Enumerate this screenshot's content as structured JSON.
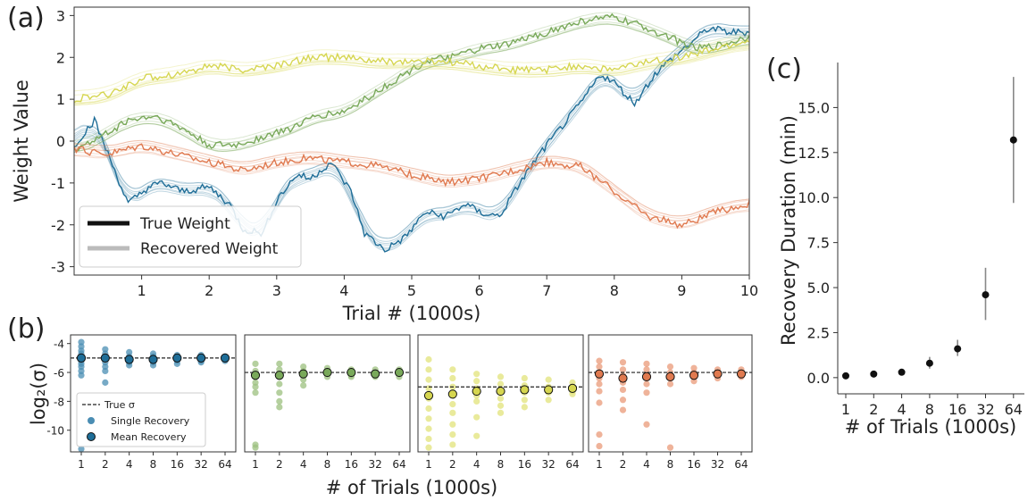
{
  "chart_data": [
    {
      "panel": "(a)",
      "type": "line",
      "xlabel": "Trial # (1000s)",
      "ylabel": "Weight Value",
      "xlim": [
        0,
        10
      ],
      "ylim": [
        -3.2,
        3.2
      ],
      "xticks": [
        "1",
        "2",
        "3",
        "4",
        "5",
        "6",
        "7",
        "8",
        "9",
        "10"
      ],
      "yticks": [
        "-3",
        "-2",
        "-1",
        "0",
        "1",
        "2",
        "3"
      ],
      "legend": {
        "placement": "lower-left",
        "entries": [
          {
            "label": "True Weight",
            "color": "#111111"
          },
          {
            "label": "Recovered Weight",
            "color": "#bbbbbb"
          }
        ]
      },
      "colors": {
        "blue": "#1f6e98",
        "green": "#79a95a",
        "yellow": "#d6d650",
        "orange": "#e07a50"
      },
      "series": [
        {
          "color": "blue",
          "x": [
            0,
            0.3,
            0.5,
            0.8,
            1.1,
            1.3,
            1.6,
            2.0,
            2.3,
            2.5,
            2.8,
            3.0,
            3.3,
            3.5,
            3.8,
            4.1,
            4.3,
            4.6,
            4.9,
            5.2,
            5.5,
            5.8,
            6.0,
            6.3,
            6.6,
            6.9,
            7.2,
            7.5,
            7.8,
            8.0,
            8.3,
            8.6,
            8.8,
            9.1,
            9.4,
            9.7,
            10
          ],
          "values": [
            -0.1,
            0.5,
            -0.3,
            -1.5,
            -1.1,
            -1.0,
            -1.2,
            -1.1,
            -1.5,
            -2.1,
            -2.2,
            -1.4,
            -0.8,
            -0.9,
            -0.5,
            -1.2,
            -2.2,
            -2.6,
            -2.3,
            -1.7,
            -1.8,
            -1.5,
            -1.7,
            -1.8,
            -1.0,
            -0.3,
            0.3,
            0.9,
            1.6,
            1.4,
            0.9,
            1.6,
            1.9,
            2.3,
            2.7,
            2.6,
            2.6
          ]
        },
        {
          "color": "green",
          "x": [
            0,
            0.4,
            0.8,
            1.2,
            1.6,
            2.0,
            2.4,
            2.8,
            3.2,
            3.6,
            4.0,
            4.4,
            4.8,
            5.2,
            5.6,
            6.0,
            6.4,
            6.8,
            7.2,
            7.6,
            8.0,
            8.4,
            8.8,
            9.2,
            9.6,
            10
          ],
          "values": [
            -0.2,
            0.1,
            0.5,
            0.6,
            0.3,
            -0.1,
            -0.1,
            0.1,
            0.3,
            0.6,
            0.7,
            1.1,
            1.5,
            1.9,
            2.0,
            2.2,
            2.3,
            2.5,
            2.7,
            2.9,
            2.95,
            2.75,
            2.5,
            2.2,
            2.3,
            2.5
          ]
        },
        {
          "color": "yellow",
          "x": [
            0,
            0.5,
            1.0,
            1.5,
            2.0,
            2.5,
            3.0,
            3.5,
            4.0,
            4.5,
            5.0,
            5.5,
            6.0,
            6.5,
            7.0,
            7.5,
            8.0,
            8.5,
            9.0,
            9.5,
            10
          ],
          "values": [
            1.0,
            1.1,
            1.5,
            1.6,
            1.8,
            1.7,
            1.8,
            2.0,
            2.0,
            1.9,
            1.9,
            1.9,
            1.8,
            1.7,
            1.7,
            1.8,
            1.7,
            1.9,
            2.0,
            2.2,
            2.4
          ]
        },
        {
          "color": "orange",
          "x": [
            0,
            0.5,
            1.0,
            1.5,
            2.0,
            2.5,
            3.0,
            3.5,
            4.0,
            4.5,
            5.0,
            5.5,
            6.0,
            6.5,
            7.0,
            7.5,
            8.0,
            8.5,
            9.0,
            9.5,
            10
          ],
          "values": [
            -0.2,
            -0.3,
            -0.1,
            -0.3,
            -0.5,
            -0.7,
            -0.5,
            -0.4,
            -0.5,
            -0.6,
            -0.8,
            -1.0,
            -0.9,
            -0.7,
            -0.5,
            -0.6,
            -1.2,
            -1.8,
            -2.0,
            -1.7,
            -1.5
          ]
        }
      ]
    },
    {
      "panel": "(b)",
      "type": "scatter",
      "xlabel": "# of Trials (1000s)",
      "ylabel": "log₂(σ)",
      "categories": [
        "1",
        "2",
        "4",
        "8",
        "16",
        "32",
        "64"
      ],
      "ylim": [
        -11.5,
        -3.4
      ],
      "yticks": [
        "-4",
        "-6",
        "-8",
        "-10"
      ],
      "legend": {
        "placement": "lower-left",
        "entries": [
          {
            "label": "True σ",
            "marker": "dashed-line"
          },
          {
            "label": "Single Recovery",
            "marker": "dot"
          },
          {
            "label": "Mean Recovery",
            "marker": "ringed-dot"
          }
        ]
      },
      "subplots": [
        {
          "color": "blue",
          "true_sigma": -5.0,
          "means": [
            -5.0,
            -5.0,
            -5.1,
            -5.1,
            -5.0,
            -5.0,
            -5.0
          ],
          "singles": [
            [
              -3.9,
              -4.2,
              -4.5,
              -4.7,
              -4.9,
              -5.2,
              -5.4,
              -5.6,
              -5.9,
              -6.2,
              -11.3
            ],
            [
              -4.4,
              -4.7,
              -5.0,
              -5.3,
              -5.6,
              -5.9,
              -6.7
            ],
            [
              -4.6,
              -4.9,
              -5.1,
              -5.3,
              -5.5
            ],
            [
              -4.7,
              -4.9,
              -5.1,
              -5.3,
              -5.5
            ],
            [
              -4.8,
              -5.0,
              -5.2,
              -5.4
            ],
            [
              -4.8,
              -5.0,
              -5.2,
              -5.3
            ],
            [
              -4.9,
              -5.0,
              -5.1,
              -5.2
            ]
          ]
        },
        {
          "color": "green",
          "true_sigma": -6.0,
          "means": [
            -6.2,
            -6.2,
            -6.1,
            -6.0,
            -6.0,
            -6.1,
            -6.0
          ],
          "singles": [
            [
              -5.4,
              -5.9,
              -6.3,
              -6.7,
              -7.0,
              -7.4,
              -11.0,
              -11.2
            ],
            [
              -5.4,
              -5.8,
              -6.3,
              -6.8,
              -7.4,
              -8.0,
              -8.4
            ],
            [
              -5.6,
              -5.9,
              -6.2,
              -6.5,
              -6.9
            ],
            [
              -5.7,
              -5.9,
              -6.1,
              -6.3
            ],
            [
              -5.8,
              -6.0,
              -6.2,
              -6.3
            ],
            [
              -5.8,
              -6.0,
              -6.2,
              -6.3
            ],
            [
              -5.8,
              -6.0,
              -6.1,
              -6.3
            ]
          ]
        },
        {
          "color": "yellow",
          "true_sigma": -7.0,
          "means": [
            -7.6,
            -7.5,
            -7.3,
            -7.3,
            -7.2,
            -7.2,
            -7.1
          ],
          "singles": [
            [
              -5.1,
              -5.8,
              -6.5,
              -7.1,
              -7.8,
              -8.5,
              -9.2,
              -9.9,
              -10.6,
              -11.2
            ],
            [
              -5.8,
              -6.4,
              -7.0,
              -7.6,
              -8.2,
              -8.8,
              -9.6,
              -10.3,
              -11.0
            ],
            [
              -6.1,
              -6.6,
              -7.1,
              -7.6,
              -8.0,
              -9.1,
              -10.4
            ],
            [
              -6.3,
              -6.8,
              -7.3,
              -7.8,
              -8.3,
              -8.8
            ],
            [
              -6.4,
              -6.9,
              -7.4,
              -7.9,
              -8.4
            ],
            [
              -6.5,
              -7.0,
              -7.4,
              -7.9
            ],
            [
              -6.7,
              -7.0,
              -7.3,
              -7.5
            ]
          ]
        },
        {
          "color": "orange",
          "true_sigma": -6.0,
          "means": [
            -6.1,
            -6.4,
            -6.3,
            -6.3,
            -6.2,
            -6.1,
            -6.1
          ],
          "singles": [
            [
              -5.2,
              -5.6,
              -6.0,
              -6.4,
              -6.8,
              -7.3,
              -8.1,
              -10.3,
              -11.1
            ],
            [
              -5.3,
              -5.8,
              -6.2,
              -6.7,
              -7.2,
              -7.9,
              -8.6
            ],
            [
              -5.4,
              -5.8,
              -6.3,
              -6.8,
              -7.4,
              -9.6
            ],
            [
              -5.6,
              -6.0,
              -6.4,
              -6.8,
              -11.2
            ],
            [
              -5.7,
              -6.0,
              -6.3,
              -6.6
            ],
            [
              -5.8,
              -6.0,
              -6.2,
              -6.4
            ],
            [
              -5.8,
              -6.0,
              -6.2,
              -6.3
            ]
          ]
        }
      ]
    },
    {
      "panel": "(c)",
      "type": "scatter",
      "xlabel": "# of Trials (1000s)",
      "ylabel": "Recovery Duration (min)",
      "categories": [
        "1",
        "2",
        "4",
        "8",
        "16",
        "32",
        "64"
      ],
      "ylim": [
        -0.9,
        17.5
      ],
      "yticks": [
        "0.0",
        "2.5",
        "5.0",
        "7.5",
        "10.0",
        "12.5",
        "15.0"
      ],
      "values": [
        0.1,
        0.2,
        0.3,
        0.8,
        1.6,
        4.6,
        13.2
      ],
      "err_low": [
        0.05,
        0.1,
        0.15,
        0.5,
        1.2,
        3.2,
        9.7
      ],
      "err_high": [
        0.15,
        0.3,
        0.45,
        1.15,
        2.1,
        6.1,
        16.7
      ]
    }
  ]
}
